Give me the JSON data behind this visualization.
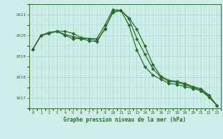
{
  "title": "Graphe pression niveau de la mer (hPa)",
  "background_color": "#cceee8",
  "grid_color": "#aaddcc",
  "line_color": "#2d6b2d",
  "marker_color": "#2d6b2d",
  "xlim": [
    -0.5,
    23.5
  ],
  "ylim": [
    1016.5,
    1021.5
  ],
  "yticks": [
    1017,
    1018,
    1019,
    1020,
    1021
  ],
  "xticks": [
    0,
    1,
    2,
    3,
    4,
    5,
    6,
    7,
    8,
    9,
    10,
    11,
    12,
    13,
    14,
    15,
    16,
    17,
    18,
    19,
    20,
    21,
    22,
    23
  ],
  "series1": [
    1019.35,
    1020.0,
    1020.1,
    1020.2,
    1020.2,
    1020.1,
    1019.9,
    1019.85,
    1019.85,
    1020.5,
    1021.25,
    1021.2,
    1020.85,
    1020.3,
    1019.5,
    1018.6,
    1018.05,
    1017.85,
    1017.8,
    1017.7,
    1017.55,
    1017.45,
    1017.15,
    1016.65
  ],
  "series2": [
    1019.35,
    1020.0,
    1020.1,
    1020.2,
    1020.05,
    1019.95,
    1019.85,
    1019.85,
    1019.75,
    1020.3,
    1021.15,
    1021.2,
    1020.8,
    1019.85,
    1019.1,
    1018.4,
    1018.0,
    1017.8,
    1017.75,
    1017.65,
    1017.5,
    1017.4,
    1017.1,
    1016.65
  ],
  "series3": [
    1019.35,
    1020.0,
    1020.15,
    1020.2,
    1020.0,
    1019.85,
    1019.85,
    1019.75,
    1019.7,
    1020.35,
    1021.1,
    1021.2,
    1020.5,
    1019.3,
    1018.5,
    1018.1,
    1017.9,
    1017.7,
    1017.65,
    1017.55,
    1017.45,
    1017.35,
    1017.05,
    1016.65
  ]
}
